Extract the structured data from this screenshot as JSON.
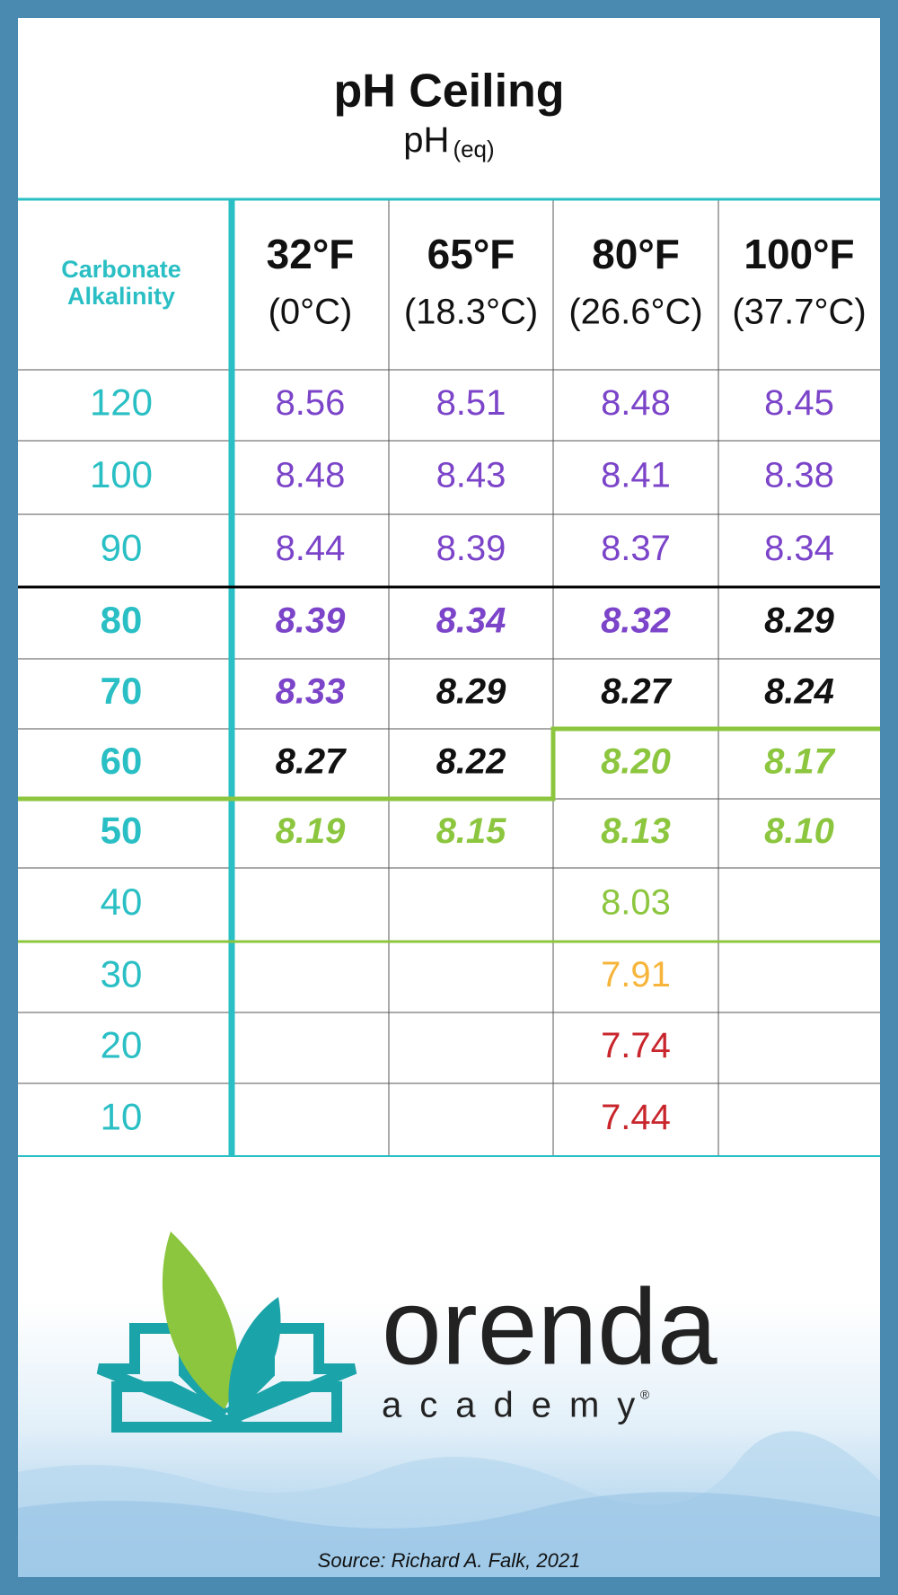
{
  "header": {
    "title": "pH Ceiling",
    "subtitle": "pH",
    "subtitle_sub": "(eq)"
  },
  "table": {
    "corner": [
      "Carbonate",
      "Alkalinity"
    ],
    "columns": [
      {
        "f": "32°F",
        "c": "(0°C)"
      },
      {
        "f": "65°F",
        "c": "(18.3°C)"
      },
      {
        "f": "80°F",
        "c": "(26.6°C)"
      },
      {
        "f": "100°F",
        "c": "(37.7°C)"
      }
    ],
    "rows": [
      {
        "alkalinity": "120",
        "values": [
          "8.56",
          "8.51",
          "8.48",
          "8.45"
        ]
      },
      {
        "alkalinity": "100",
        "values": [
          "8.48",
          "8.43",
          "8.41",
          "8.38"
        ]
      },
      {
        "alkalinity": "90",
        "values": [
          "8.44",
          "8.39",
          "8.37",
          "8.34"
        ]
      },
      {
        "alkalinity": "80",
        "values": [
          "8.39",
          "8.34",
          "8.32",
          "8.29"
        ]
      },
      {
        "alkalinity": "70",
        "values": [
          "8.33",
          "8.29",
          "8.27",
          "8.24"
        ]
      },
      {
        "alkalinity": "60",
        "values": [
          "8.27",
          "8.22",
          "8.20",
          "8.17"
        ]
      },
      {
        "alkalinity": "50",
        "values": [
          "8.19",
          "8.15",
          "8.13",
          "8.10"
        ]
      },
      {
        "alkalinity": "40",
        "values": [
          null,
          null,
          "8.03",
          null
        ]
      },
      {
        "alkalinity": "30",
        "values": [
          null,
          null,
          "7.91",
          null
        ]
      },
      {
        "alkalinity": "20",
        "values": [
          null,
          null,
          "7.74",
          null
        ]
      },
      {
        "alkalinity": "10",
        "values": [
          null,
          null,
          "7.44",
          null
        ]
      }
    ]
  },
  "logo": {
    "name": "orenda",
    "tagline": "academy",
    "mark": "®"
  },
  "source": "Source: Richard A. Falk, 2021"
}
